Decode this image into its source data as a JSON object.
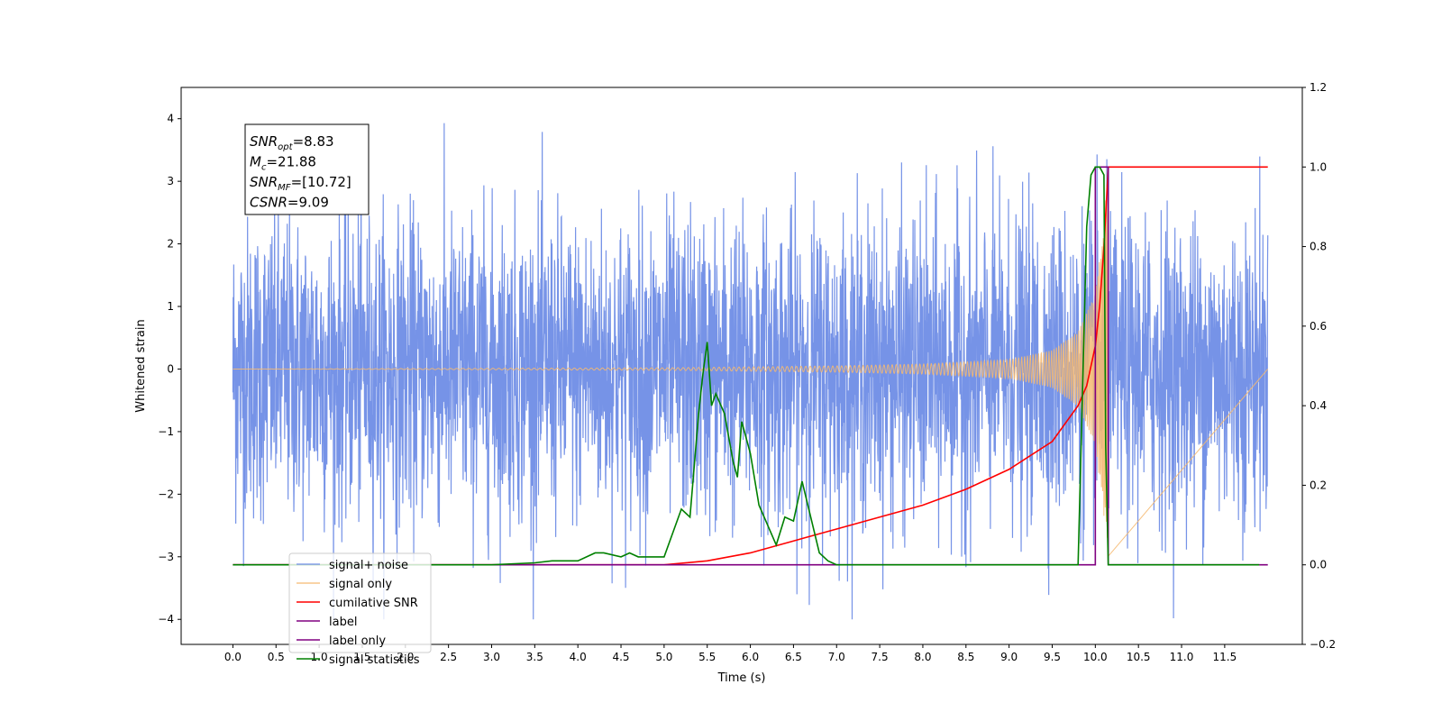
{
  "chart_data": {
    "type": "line",
    "title": "",
    "xlabel": "Time (s)",
    "ylabel": "Whitened strain",
    "y2label": "",
    "xlim": [
      -0.6,
      12.4
    ],
    "ylim": [
      -4.4,
      4.5
    ],
    "y2lim": [
      -0.2,
      1.2
    ],
    "x_ticks": [
      0.0,
      0.5,
      1.0,
      1.5,
      2.0,
      2.5,
      3.0,
      3.5,
      4.0,
      4.5,
      5.0,
      5.5,
      6.0,
      6.5,
      7.0,
      7.5,
      8.0,
      8.5,
      9.0,
      9.5,
      10.0,
      10.5,
      11.0,
      11.5
    ],
    "x_tick_labels": [
      "0.0",
      "0.5",
      "1.0",
      "1.5",
      "2.0",
      "2.5",
      "3.0",
      "3.5",
      "4.0",
      "4.5",
      "5.0",
      "5.5",
      "6.0",
      "6.5",
      "7.0",
      "7.5",
      "8.0",
      "8.5",
      "9.0",
      "9.5",
      "10.0",
      "10.5",
      "11.0",
      "11.5"
    ],
    "y_ticks": [
      -4,
      -3,
      -2,
      -1,
      0,
      1,
      2,
      3,
      4
    ],
    "y_tick_labels": [
      "−4",
      "−3",
      "−2",
      "−1",
      "0",
      "1",
      "2",
      "3",
      "4"
    ],
    "y2_ticks": [
      -0.2,
      0.0,
      0.2,
      0.4,
      0.6,
      0.8,
      1.0,
      1.2
    ],
    "y2_tick_labels": [
      "−0.2",
      "0.0",
      "0.2",
      "0.4",
      "0.6",
      "0.8",
      "1.0",
      "1.2"
    ],
    "grid": false,
    "legend_placement": "lower-left",
    "annotation": {
      "lines": [
        {
          "base": "SNR",
          "sub": "opt",
          "value": "=8.83"
        },
        {
          "base": "M",
          "sub": "c",
          "value": "=21.88"
        },
        {
          "base": "SNR",
          "sub": "MF",
          "value": "=[10.72]"
        },
        {
          "base": "CSNR",
          "sub": "",
          "value": "=9.09"
        }
      ]
    },
    "series": [
      {
        "name": "signal+ noise",
        "axis": "left",
        "color": "#6f8de6",
        "noise_envelope": {
          "x_range": [
            0.0,
            12.0
          ],
          "typical_amplitude": 1.6,
          "peak_max": 4.1,
          "peak_min": -4.0
        }
      },
      {
        "name": "signal only",
        "axis": "left",
        "color": "#f5b971",
        "chirp": {
          "x_range": [
            0.0,
            10.15
          ],
          "amplitudes": [
            [
              0.0,
              0.0
            ],
            [
              5.0,
              0.02
            ],
            [
              7.0,
              0.05
            ],
            [
              8.0,
              0.08
            ],
            [
              9.0,
              0.15
            ],
            [
              9.5,
              0.3
            ],
            [
              9.8,
              0.6
            ],
            [
              10.0,
              1.2
            ],
            [
              10.1,
              2.4
            ],
            [
              10.15,
              3.2
            ]
          ]
        }
      },
      {
        "name": "cumilative SNR",
        "axis": "right",
        "color": "#ff0000",
        "x": [
          0.0,
          5.0,
          5.5,
          6.0,
          6.5,
          7.0,
          7.5,
          8.0,
          8.5,
          9.0,
          9.5,
          9.8,
          9.9,
          10.0,
          10.05,
          10.1,
          10.15,
          10.2,
          12.0
        ],
        "y": [
          0.0,
          0.0,
          0.01,
          0.03,
          0.06,
          0.09,
          0.12,
          0.15,
          0.19,
          0.24,
          0.31,
          0.4,
          0.45,
          0.55,
          0.65,
          0.8,
          1.0,
          1.0,
          1.0
        ]
      },
      {
        "name": "label",
        "axis": "right",
        "color": "#800080",
        "x": [
          0.0,
          10.0,
          10.0,
          10.15,
          10.15,
          12.0
        ],
        "y": [
          0.0,
          0.0,
          1.0,
          1.0,
          0.0,
          0.0
        ]
      },
      {
        "name": "label only",
        "axis": "right",
        "color": "#800080",
        "hidden": true,
        "x": [],
        "y": []
      },
      {
        "name": "signal statistics",
        "axis": "right",
        "color": "#008000",
        "x": [
          0.0,
          3.0,
          3.5,
          3.7,
          4.0,
          4.2,
          4.3,
          4.5,
          4.6,
          4.7,
          4.8,
          5.0,
          5.2,
          5.3,
          5.4,
          5.45,
          5.5,
          5.55,
          5.6,
          5.7,
          5.8,
          5.85,
          5.9,
          6.0,
          6.1,
          6.2,
          6.3,
          6.4,
          6.5,
          6.6,
          6.7,
          6.8,
          6.9,
          7.0,
          7.1,
          9.8,
          9.9,
          9.95,
          10.0,
          10.05,
          10.1,
          10.12,
          10.15,
          10.2,
          11.9
        ],
        "y": [
          0.0,
          0.0,
          0.005,
          0.01,
          0.01,
          0.03,
          0.03,
          0.02,
          0.03,
          0.02,
          0.02,
          0.02,
          0.14,
          0.12,
          0.38,
          0.48,
          0.56,
          0.4,
          0.43,
          0.38,
          0.26,
          0.22,
          0.36,
          0.28,
          0.15,
          0.1,
          0.05,
          0.12,
          0.11,
          0.21,
          0.12,
          0.03,
          0.01,
          0.0,
          0.0,
          0.0,
          0.85,
          0.98,
          1.0,
          1.0,
          0.98,
          0.3,
          0.0,
          0.0,
          0.0
        ]
      }
    ]
  }
}
